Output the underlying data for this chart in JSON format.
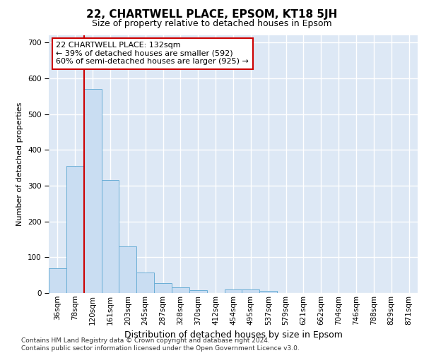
{
  "title": "22, CHARTWELL PLACE, EPSOM, KT18 5JH",
  "subtitle": "Size of property relative to detached houses in Epsom",
  "xlabel": "Distribution of detached houses by size in Epsom",
  "ylabel": "Number of detached properties",
  "bar_labels": [
    "36sqm",
    "78sqm",
    "120sqm",
    "161sqm",
    "203sqm",
    "245sqm",
    "287sqm",
    "328sqm",
    "370sqm",
    "412sqm",
    "454sqm",
    "495sqm",
    "537sqm",
    "579sqm",
    "621sqm",
    "662sqm",
    "704sqm",
    "746sqm",
    "788sqm",
    "829sqm",
    "871sqm"
  ],
  "bar_values": [
    70,
    355,
    570,
    315,
    130,
    58,
    28,
    15,
    8,
    0,
    10,
    10,
    5,
    0,
    0,
    0,
    0,
    0,
    0,
    0,
    0
  ],
  "bar_color": "#c9ddf2",
  "bar_edge_color": "#6aaed6",
  "vline_color": "#cc0000",
  "vline_x_index": 2,
  "annotation_text": "22 CHARTWELL PLACE: 132sqm\n← 39% of detached houses are smaller (592)\n60% of semi-detached houses are larger (925) →",
  "annotation_box_facecolor": "#ffffff",
  "annotation_box_edgecolor": "#cc0000",
  "ylim": [
    0,
    720
  ],
  "yticks": [
    0,
    100,
    200,
    300,
    400,
    500,
    600,
    700
  ],
  "figure_bg": "#ffffff",
  "axes_bg": "#dde8f5",
  "grid_color": "#ffffff",
  "footer": "Contains HM Land Registry data © Crown copyright and database right 2024.\nContains public sector information licensed under the Open Government Licence v3.0.",
  "title_fontsize": 11,
  "subtitle_fontsize": 9,
  "xlabel_fontsize": 9,
  "ylabel_fontsize": 8,
  "tick_fontsize": 7.5,
  "footer_fontsize": 6.5
}
